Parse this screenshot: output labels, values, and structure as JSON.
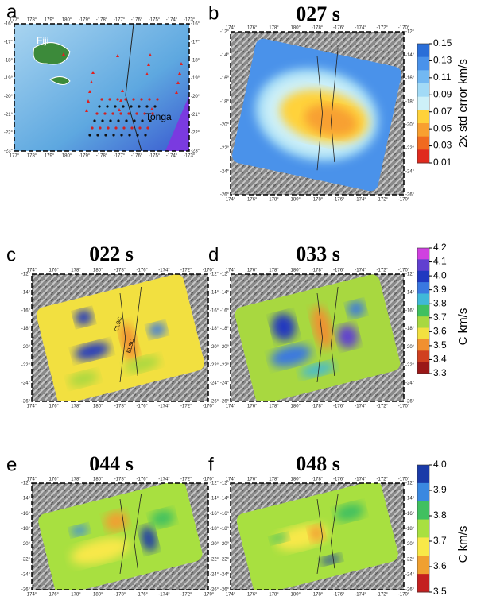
{
  "panels": [
    {
      "letter": "a",
      "labels": [
        "Fiji",
        "Tonga"
      ]
    },
    {
      "letter": "b",
      "title": "027  s"
    },
    {
      "letter": "c",
      "title": "022  s",
      "labels": [
        "CLSC",
        "ELSC"
      ]
    },
    {
      "letter": "d",
      "title": "033  s"
    },
    {
      "letter": "e",
      "title": "044  s"
    },
    {
      "letter": "f",
      "title": "048  s"
    }
  ],
  "lon_ticks_a": [
    "177°",
    "178°",
    "179°",
    "180°",
    "-179°",
    "-178°",
    "-177°",
    "-176°",
    "-175°",
    "-174°",
    "-173°"
  ],
  "lat_ticks_a": [
    "-16°",
    "-17°",
    "-18°",
    "-19°",
    "-20°",
    "-21°",
    "-22°",
    "-23°"
  ],
  "lon_ticks": [
    "174°",
    "176°",
    "178°",
    "180°",
    "-178°",
    "-176°",
    "-174°",
    "-172°",
    "-170°"
  ],
  "lat_ticks": [
    "-12°",
    "-14°",
    "-16°",
    "-18°",
    "-20°",
    "-22°",
    "-24°",
    "-26°"
  ],
  "colorbars": [
    {
      "label": "2x std error  km/s",
      "ticks": [
        "0.15",
        "0.13",
        "0.11",
        "0.09",
        "0.07",
        "0.05",
        "0.03",
        "0.01"
      ],
      "colors": [
        "#2a6ed8",
        "#4a92ea",
        "#72b8f2",
        "#a2daf6",
        "#cdf0f8",
        "#ffd23a",
        "#f8a030",
        "#f06a20",
        "#e02a1e"
      ]
    },
    {
      "label": "C  km/s",
      "ticks": [
        "4.2",
        "4.1",
        "4.0",
        "3.9",
        "3.8",
        "3.7",
        "3.6",
        "3.5",
        "3.4",
        "3.3"
      ],
      "colors": [
        "#d040e0",
        "#6040d0",
        "#2038c0",
        "#3a78e0",
        "#40b8d8",
        "#40c060",
        "#a8d840",
        "#f2e040",
        "#f09030",
        "#d04020",
        "#9a1818"
      ]
    },
    {
      "label": "C  km/s",
      "ticks": [
        "4.0",
        "3.9",
        "3.8",
        "3.7",
        "3.6",
        "3.5"
      ],
      "colors": [
        "#1a3aa8",
        "#3a88e0",
        "#40c060",
        "#a8e040",
        "#f8e848",
        "#f0a030",
        "#c42020"
      ]
    }
  ]
}
